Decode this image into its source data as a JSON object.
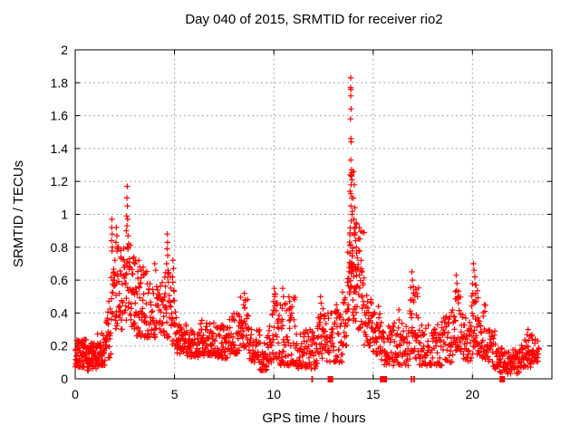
{
  "window": {
    "background": "#ffffff"
  },
  "chart_data": {
    "type": "scatter",
    "title": "Day 040 of 2015, SRMTID for receiver rio2",
    "xlabel": "GPS time / hours",
    "ylabel": "SRMTID / TECUs",
    "xlim": [
      0,
      24
    ],
    "ylim": [
      0,
      2
    ],
    "xticks": [
      {
        "v": 0,
        "label": "0"
      },
      {
        "v": 5,
        "label": "5"
      },
      {
        "v": 10,
        "label": "10"
      },
      {
        "v": 15,
        "label": "15"
      },
      {
        "v": 20,
        "label": "20"
      }
    ],
    "yticks": [
      {
        "v": 0,
        "label": "0"
      },
      {
        "v": 0.2,
        "label": "0.2"
      },
      {
        "v": 0.4,
        "label": "0.4"
      },
      {
        "v": 0.6,
        "label": "0.6"
      },
      {
        "v": 0.8,
        "label": "0.8"
      },
      {
        "v": 1,
        "label": "1"
      },
      {
        "v": 1.2,
        "label": "1.2"
      },
      {
        "v": 1.4,
        "label": "1.4"
      },
      {
        "v": 1.6,
        "label": "1.6"
      },
      {
        "v": 1.8,
        "label": "1.8"
      },
      {
        "v": 2,
        "label": "2"
      }
    ],
    "grid": "dotted, at every tick",
    "legend": "none",
    "marker": "plus",
    "marker_color": "#ff0000",
    "grid_color": "#a8a8a8",
    "axis_color": "#000000",
    "band_segments_format": "[t_start_h, t_end_h, y_min_TECUs, y_max_TECUs, approx_point_count] — dense scatter bands read from the plot",
    "band_segments": [
      [
        0.0,
        0.55,
        0.07,
        0.24,
        60
      ],
      [
        0.55,
        1.1,
        0.05,
        0.22,
        60
      ],
      [
        1.1,
        1.55,
        0.08,
        0.28,
        45
      ],
      [
        1.55,
        1.8,
        0.12,
        0.5,
        22
      ],
      [
        1.8,
        2.5,
        0.3,
        0.82,
        60
      ],
      [
        2.5,
        2.8,
        0.35,
        0.85,
        28
      ],
      [
        2.8,
        3.1,
        0.3,
        0.75,
        26
      ],
      [
        3.1,
        3.6,
        0.25,
        0.68,
        40
      ],
      [
        3.6,
        4.45,
        0.25,
        0.6,
        60
      ],
      [
        4.45,
        4.8,
        0.25,
        0.65,
        28
      ],
      [
        4.8,
        5.1,
        0.2,
        0.6,
        24
      ],
      [
        5.1,
        5.6,
        0.15,
        0.35,
        40
      ],
      [
        5.6,
        6.3,
        0.13,
        0.3,
        55
      ],
      [
        6.3,
        7.0,
        0.14,
        0.36,
        55
      ],
      [
        7.0,
        7.7,
        0.12,
        0.33,
        55
      ],
      [
        7.7,
        8.25,
        0.15,
        0.4,
        42
      ],
      [
        8.25,
        8.75,
        0.17,
        0.5,
        38
      ],
      [
        8.75,
        9.3,
        0.1,
        0.3,
        40
      ],
      [
        9.3,
        9.65,
        0.05,
        0.22,
        28
      ],
      [
        9.65,
        9.9,
        0.1,
        0.35,
        20
      ],
      [
        9.9,
        10.3,
        0.12,
        0.52,
        34
      ],
      [
        10.3,
        11.1,
        0.08,
        0.5,
        60
      ],
      [
        11.1,
        12.2,
        0.06,
        0.3,
        75
      ],
      [
        12.2,
        12.65,
        0.12,
        0.45,
        36
      ],
      [
        12.65,
        13.45,
        0.1,
        0.42,
        58
      ],
      [
        13.45,
        13.7,
        0.2,
        0.55,
        20
      ],
      [
        13.7,
        13.8,
        0.35,
        0.8,
        12
      ],
      [
        13.8,
        13.97,
        0.5,
        1.3,
        34
      ],
      [
        13.97,
        14.2,
        0.35,
        1.0,
        30
      ],
      [
        14.2,
        14.55,
        0.3,
        0.9,
        30
      ],
      [
        14.55,
        15.0,
        0.2,
        0.55,
        36
      ],
      [
        15.0,
        15.35,
        0.15,
        0.45,
        28
      ],
      [
        15.35,
        16.85,
        0.08,
        0.36,
        100
      ],
      [
        16.85,
        17.3,
        0.12,
        0.58,
        36
      ],
      [
        17.3,
        18.5,
        0.08,
        0.35,
        80
      ],
      [
        18.5,
        19.05,
        0.1,
        0.42,
        40
      ],
      [
        19.05,
        19.45,
        0.15,
        0.55,
        32
      ],
      [
        19.45,
        19.95,
        0.1,
        0.4,
        36
      ],
      [
        19.95,
        20.35,
        0.15,
        0.6,
        34
      ],
      [
        20.35,
        20.8,
        0.12,
        0.45,
        32
      ],
      [
        20.8,
        21.35,
        0.06,
        0.3,
        40
      ],
      [
        21.35,
        22.4,
        0.03,
        0.2,
        75
      ],
      [
        22.4,
        23.05,
        0.07,
        0.28,
        50
      ],
      [
        23.05,
        23.35,
        0.1,
        0.25,
        22
      ]
    ],
    "peak_points_format": "[t_hours, SRMTID_TECUs] — individually visible extreme points",
    "peak_points": [
      [
        13.87,
        1.83
      ],
      [
        13.86,
        1.77
      ],
      [
        13.88,
        1.76
      ],
      [
        13.87,
        1.72
      ],
      [
        13.89,
        1.64
      ],
      [
        13.86,
        1.58
      ],
      [
        13.88,
        1.46
      ],
      [
        13.9,
        1.44
      ],
      [
        13.87,
        1.33
      ],
      [
        13.91,
        1.27
      ],
      [
        13.85,
        1.24
      ],
      [
        13.93,
        1.21
      ],
      [
        13.89,
        1.18
      ],
      [
        13.84,
        1.14
      ],
      [
        13.92,
        1.1
      ],
      [
        13.88,
        1.05
      ],
      [
        13.94,
        1.0
      ],
      [
        13.9,
        0.96
      ],
      [
        14.02,
        1.26
      ],
      [
        14.05,
        1.18
      ],
      [
        14.0,
        1.1
      ],
      [
        14.08,
        1.04
      ],
      [
        14.03,
        0.97
      ],
      [
        14.1,
        0.92
      ],
      [
        14.06,
        0.88
      ],
      [
        14.12,
        0.84
      ],
      [
        14.15,
        0.8
      ],
      [
        14.3,
        0.92
      ],
      [
        14.33,
        0.85
      ],
      [
        14.28,
        0.78
      ],
      [
        14.4,
        0.72
      ],
      [
        14.45,
        0.65
      ],
      [
        2.62,
        1.17
      ],
      [
        2.6,
        1.1
      ],
      [
        2.63,
        1.05
      ],
      [
        2.59,
        0.99
      ],
      [
        2.64,
        0.97
      ],
      [
        2.61,
        0.93
      ],
      [
        2.57,
        0.9
      ],
      [
        2.66,
        0.87
      ],
      [
        1.85,
        0.97
      ],
      [
        1.84,
        0.92
      ],
      [
        1.86,
        0.88
      ],
      [
        1.83,
        0.84
      ],
      [
        1.87,
        0.8
      ],
      [
        2.07,
        0.92
      ],
      [
        2.1,
        0.87
      ],
      [
        2.05,
        0.83
      ],
      [
        2.12,
        0.79
      ],
      [
        2.3,
        0.78
      ],
      [
        2.32,
        0.73
      ],
      [
        2.95,
        0.74
      ],
      [
        3.0,
        0.7
      ],
      [
        3.2,
        0.72
      ],
      [
        3.25,
        0.68
      ],
      [
        4.0,
        0.7
      ],
      [
        4.05,
        0.66
      ],
      [
        4.63,
        0.88
      ],
      [
        4.65,
        0.83
      ],
      [
        4.62,
        0.79
      ],
      [
        4.66,
        0.75
      ],
      [
        4.6,
        0.7
      ],
      [
        4.67,
        0.66
      ],
      [
        4.92,
        0.72
      ],
      [
        4.95,
        0.67
      ],
      [
        4.9,
        0.62
      ],
      [
        8.52,
        0.52
      ],
      [
        8.55,
        0.48
      ],
      [
        8.48,
        0.45
      ],
      [
        10.02,
        0.55
      ],
      [
        10.05,
        0.5
      ],
      [
        9.98,
        0.47
      ],
      [
        10.45,
        0.55
      ],
      [
        10.48,
        0.5
      ],
      [
        10.8,
        0.47
      ],
      [
        10.83,
        0.43
      ],
      [
        12.35,
        0.5
      ],
      [
        12.38,
        0.46
      ],
      [
        13.15,
        0.45
      ],
      [
        16.3,
        0.42
      ],
      [
        16.95,
        0.65
      ],
      [
        16.98,
        0.6
      ],
      [
        17.02,
        0.56
      ],
      [
        17.05,
        0.52
      ],
      [
        16.92,
        0.48
      ],
      [
        19.18,
        0.63
      ],
      [
        19.22,
        0.58
      ],
      [
        19.15,
        0.53
      ],
      [
        19.25,
        0.49
      ],
      [
        20.05,
        0.7
      ],
      [
        20.08,
        0.66
      ],
      [
        20.12,
        0.62
      ],
      [
        20.15,
        0.57
      ],
      [
        20.02,
        0.52
      ],
      [
        20.18,
        0.47
      ],
      [
        20.6,
        0.45
      ],
      [
        20.63,
        0.41
      ],
      [
        22.8,
        0.3
      ]
    ],
    "zero_cluster_markers_format": "[t_hours, cluster_width_px] — solid red clusters sitting on y=0 axis",
    "zero_cluster_markers": [
      [
        11.93,
        2
      ],
      [
        12.85,
        6
      ],
      [
        15.5,
        7
      ],
      [
        15.63,
        3
      ],
      [
        16.93,
        2
      ],
      [
        17.06,
        2
      ],
      [
        21.5,
        6
      ]
    ]
  }
}
